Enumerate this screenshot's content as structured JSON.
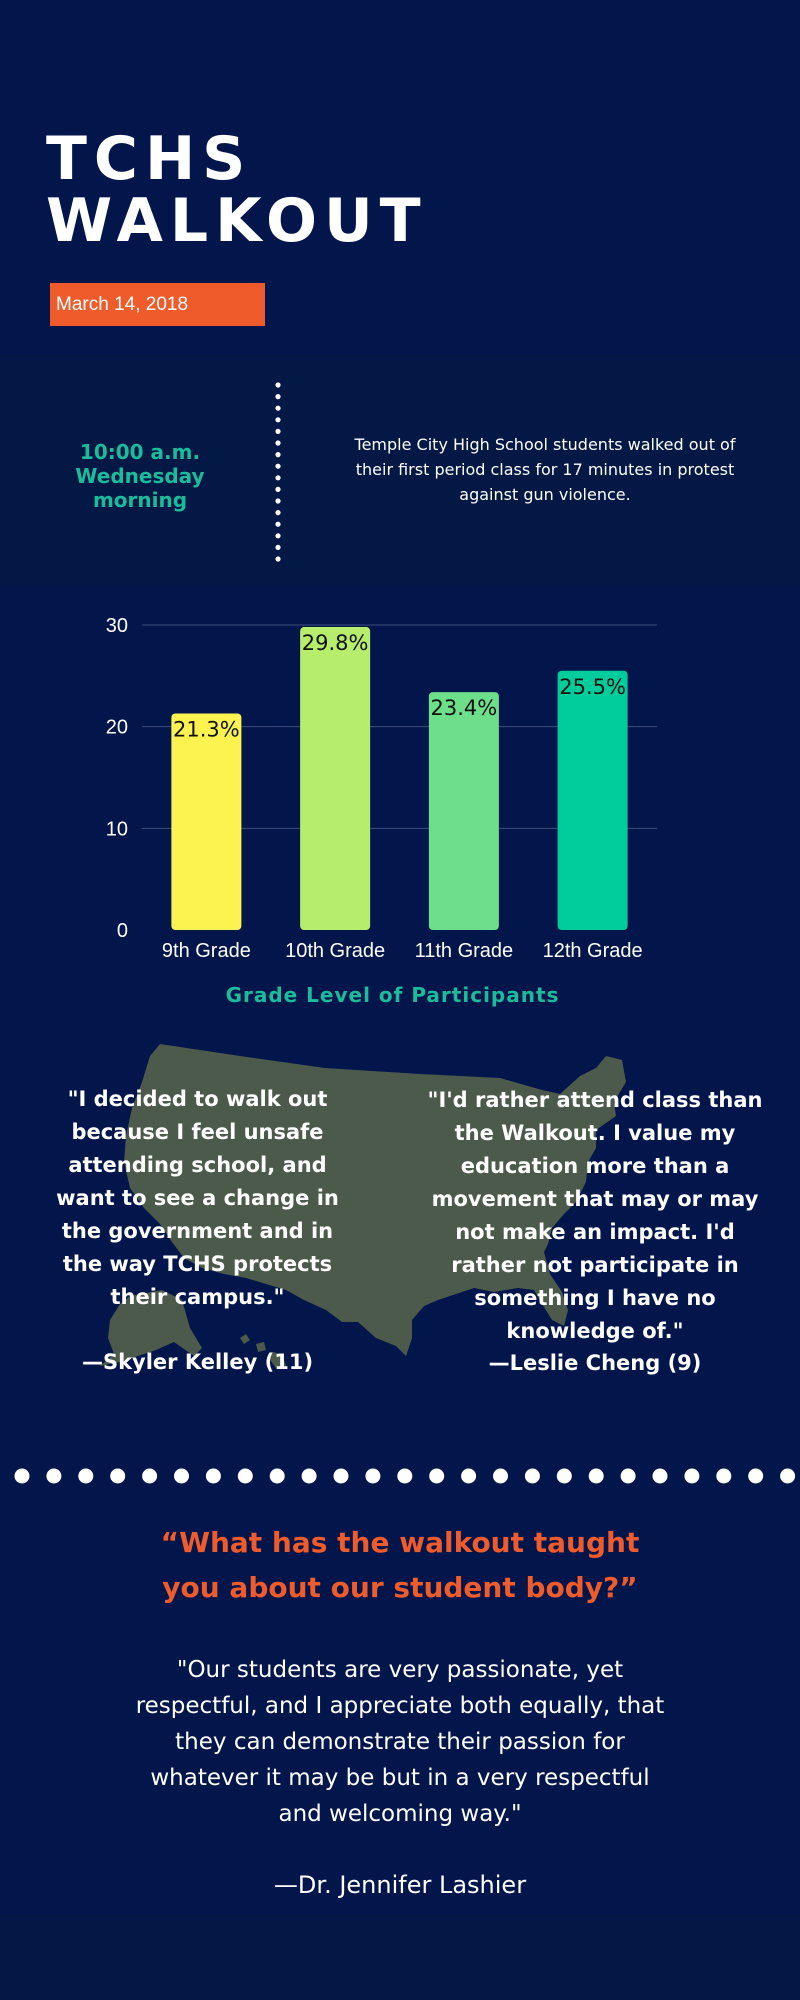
{
  "header": {
    "title_line1": "TCHS",
    "title_line2": "WALKOUT",
    "date": "March 14, 2018"
  },
  "event": {
    "time_line1": "10:00 a.m.",
    "time_line2": "Wednesday",
    "time_line3": "morning",
    "description": "Temple City High School students walked out of their first period class for 17 minutes in protest against gun violence."
  },
  "chart_data": {
    "type": "bar",
    "categories": [
      "9th Grade",
      "10th Grade",
      "11th Grade",
      "12th Grade"
    ],
    "values": [
      21.3,
      29.8,
      23.4,
      25.5
    ],
    "labels": [
      "21.3%",
      "29.8%",
      "23.4%",
      "25.5%"
    ],
    "colors": [
      "#fdf350",
      "#b7ed6c",
      "#6ddf8a",
      "#00cc9c"
    ],
    "yticks": [
      0,
      10,
      20,
      30
    ],
    "ylim": [
      0,
      30
    ],
    "grid": true,
    "caption": "Grade Level of Participants"
  },
  "quotes": {
    "left_text": "\"I decided to walk out because I feel unsafe attending school, and want to see a change in the government and in the way TCHS protects their campus.\"",
    "left_attrib": "—Skyler Kelley (11)",
    "right_text": "\"I'd rather attend class than the Walkout. I value my education more than a movement that may or may not make an impact. I'd rather not participate in something I have no knowledge of.\"",
    "right_attrib": "—Leslie Cheng (9)"
  },
  "interview": {
    "question": "“What has the walkout taught you about our student body?”",
    "answer": "\"Our students are very passionate, yet respectful, and I appreciate both equally, that they can demonstrate their passion for whatever it may be but in a very respectful and welcoming way.\"",
    "attribution": "—Dr. Jennifer Lashier"
  },
  "colors": {
    "background": "#03164c",
    "band": "#041845",
    "accent_orange": "#ef5b2b",
    "accent_teal": "#1abc9c",
    "map": "#4b5a4a"
  }
}
